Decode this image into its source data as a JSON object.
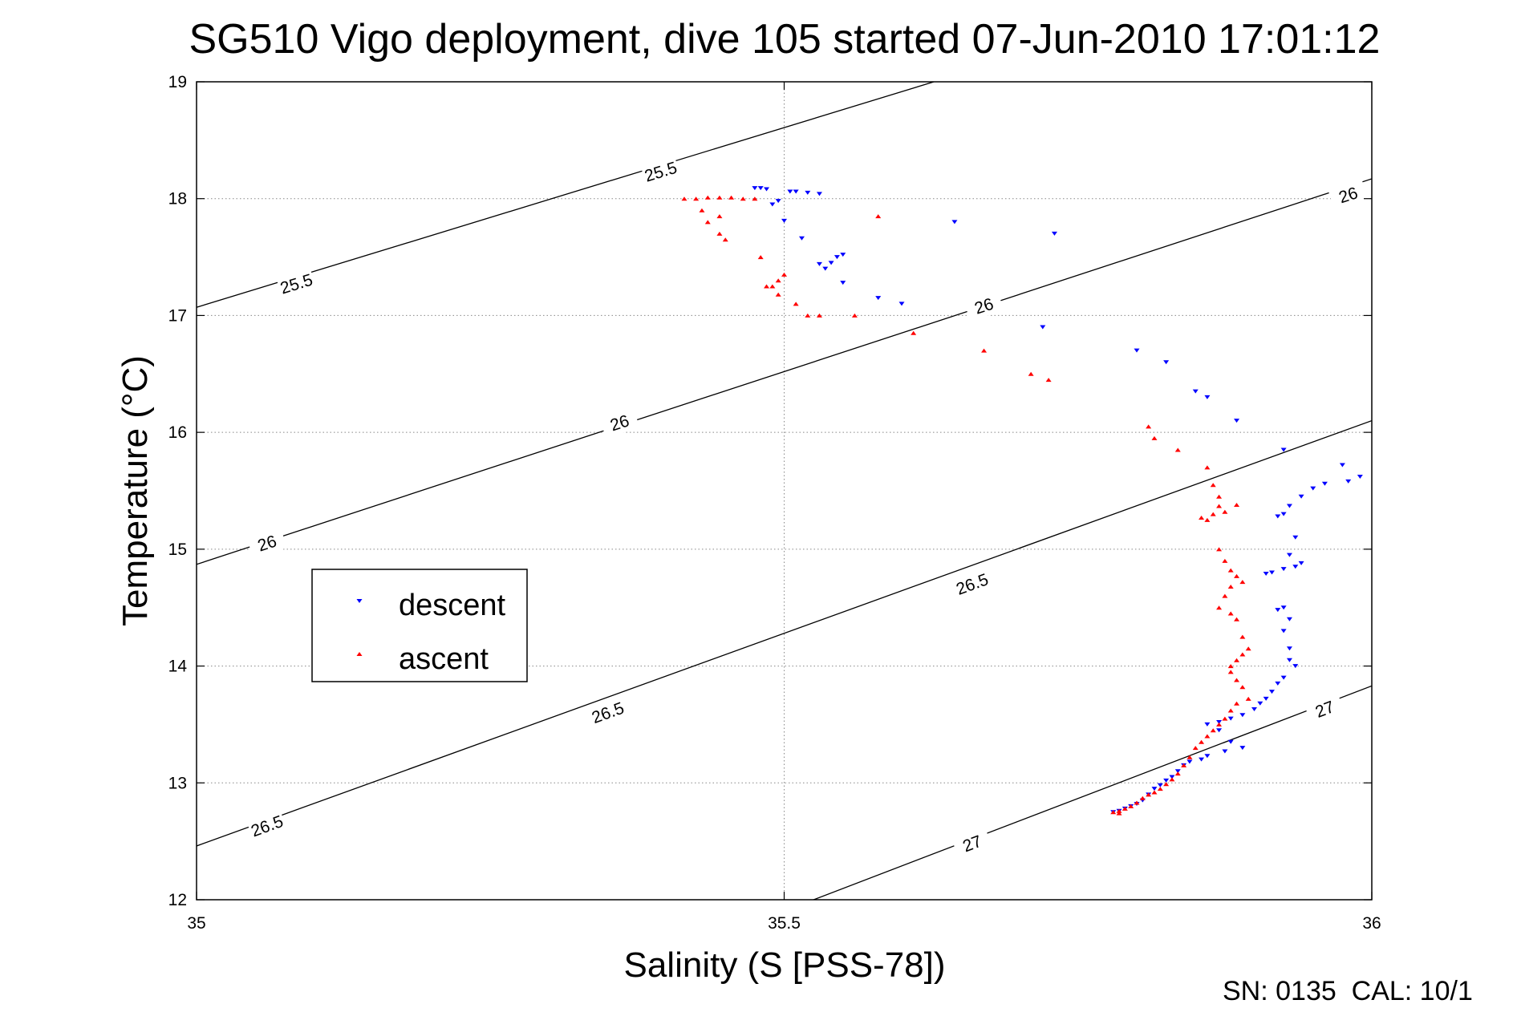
{
  "chart_data": {
    "type": "scatter",
    "title": "SG510 Vigo deployment, dive 105 started 07-Jun-2010 17:01:12",
    "xlabel": "Salinity (S [PSS-78])",
    "ylabel": "Temperature (°C)",
    "xlim": [
      35,
      36
    ],
    "ylim": [
      12,
      19
    ],
    "xticks": [
      35,
      35.5,
      36
    ],
    "yticks": [
      12,
      13,
      14,
      15,
      16,
      17,
      18,
      19
    ],
    "xtick_labels": [
      "35",
      "35.5",
      "36"
    ],
    "ytick_labels": [
      "12",
      "13",
      "14",
      "15",
      "16",
      "17",
      "18",
      "19"
    ],
    "grid": true,
    "grid_style": "dotted",
    "legend_position": "left-middle",
    "footer": "SN: 0135  CAL: 10/1",
    "contours": [
      {
        "label": "25.5",
        "points": [
          [
            35,
            17.07
          ],
          [
            35.6274,
            19
          ]
        ],
        "label_positions": [
          [
            35.085,
            17.27
          ],
          [
            35.395,
            18.23
          ]
        ]
      },
      {
        "label": "26",
        "points": [
          [
            35,
            14.87
          ],
          [
            36,
            18.17
          ]
        ],
        "label_positions": [
          [
            35.06,
            15.05
          ],
          [
            35.36,
            16.08
          ],
          [
            35.67,
            17.08
          ],
          [
            35.98,
            18.03
          ]
        ]
      },
      {
        "label": "26.5",
        "points": [
          [
            35,
            12.46
          ],
          [
            36,
            16.1
          ]
        ],
        "label_positions": [
          [
            35.06,
            12.63
          ],
          [
            35.35,
            13.6
          ],
          [
            35.66,
            14.7
          ]
        ]
      },
      {
        "label": "27",
        "points": [
          [
            35.525,
            12
          ],
          [
            36,
            13.83
          ]
        ],
        "label_positions": [
          [
            35.66,
            12.48
          ],
          [
            35.96,
            13.63
          ]
        ]
      }
    ],
    "series": [
      {
        "name": "descent",
        "color": "#0000ff",
        "marker": "triangle-down",
        "points": [
          [
            35.485,
            18.08
          ],
          [
            35.48,
            18.09
          ],
          [
            35.475,
            18.09
          ],
          [
            35.505,
            18.06
          ],
          [
            35.51,
            18.06
          ],
          [
            35.52,
            18.05
          ],
          [
            35.53,
            18.04
          ],
          [
            35.49,
            17.95
          ],
          [
            35.495,
            17.98
          ],
          [
            35.5,
            17.81
          ],
          [
            35.515,
            17.66
          ],
          [
            35.545,
            17.5
          ],
          [
            35.55,
            17.52
          ],
          [
            35.54,
            17.45
          ],
          [
            35.53,
            17.44
          ],
          [
            35.535,
            17.4
          ],
          [
            35.55,
            17.28
          ],
          [
            35.58,
            17.15
          ],
          [
            35.6,
            17.1
          ],
          [
            35.645,
            17.8
          ],
          [
            35.73,
            17.7
          ],
          [
            35.72,
            16.9
          ],
          [
            35.8,
            16.7
          ],
          [
            35.825,
            16.6
          ],
          [
            35.86,
            16.3
          ],
          [
            35.85,
            16.35
          ],
          [
            35.885,
            16.1
          ],
          [
            35.925,
            15.85
          ],
          [
            35.975,
            15.72
          ],
          [
            35.99,
            15.62
          ],
          [
            35.98,
            15.58
          ],
          [
            35.96,
            15.56
          ],
          [
            35.95,
            15.52
          ],
          [
            35.94,
            15.45
          ],
          [
            35.93,
            15.37
          ],
          [
            35.925,
            15.3
          ],
          [
            35.92,
            15.28
          ],
          [
            35.935,
            15.1
          ],
          [
            35.93,
            14.95
          ],
          [
            35.94,
            14.88
          ],
          [
            35.935,
            14.85
          ],
          [
            35.925,
            14.83
          ],
          [
            35.915,
            14.8
          ],
          [
            35.91,
            14.79
          ],
          [
            35.925,
            14.5
          ],
          [
            35.92,
            14.48
          ],
          [
            35.93,
            14.4
          ],
          [
            35.925,
            14.3
          ],
          [
            35.93,
            14.15
          ],
          [
            35.93,
            14.05
          ],
          [
            35.935,
            14
          ],
          [
            35.925,
            13.9
          ],
          [
            35.92,
            13.85
          ],
          [
            35.915,
            13.78
          ],
          [
            35.91,
            13.72
          ],
          [
            35.905,
            13.68
          ],
          [
            35.9,
            13.63
          ],
          [
            35.89,
            13.58
          ],
          [
            35.88,
            13.55
          ],
          [
            35.87,
            13.52
          ],
          [
            35.86,
            13.5
          ],
          [
            35.87,
            13.45
          ],
          [
            35.88,
            13.35
          ],
          [
            35.89,
            13.3
          ],
          [
            35.875,
            13.27
          ],
          [
            35.86,
            13.23
          ],
          [
            35.855,
            13.2
          ],
          [
            35.845,
            13.18
          ],
          [
            35.84,
            13.15
          ],
          [
            35.835,
            13.1
          ],
          [
            35.83,
            13.05
          ],
          [
            35.825,
            13.02
          ],
          [
            35.82,
            12.98
          ],
          [
            35.815,
            12.95
          ],
          [
            35.81,
            12.9
          ],
          [
            35.805,
            12.85
          ],
          [
            35.8,
            12.82
          ],
          [
            35.795,
            12.8
          ],
          [
            35.79,
            12.78
          ],
          [
            35.785,
            12.76
          ],
          [
            35.78,
            12.75
          ]
        ]
      },
      {
        "name": "ascent",
        "color": "#ff0000",
        "marker": "triangle-up",
        "points": [
          [
            35.415,
            18
          ],
          [
            35.425,
            18
          ],
          [
            35.435,
            18.01
          ],
          [
            35.445,
            18.01
          ],
          [
            35.455,
            18.01
          ],
          [
            35.465,
            18
          ],
          [
            35.475,
            18
          ],
          [
            35.43,
            17.9
          ],
          [
            35.435,
            17.8
          ],
          [
            35.445,
            17.85
          ],
          [
            35.445,
            17.7
          ],
          [
            35.45,
            17.65
          ],
          [
            35.48,
            17.5
          ],
          [
            35.5,
            17.35
          ],
          [
            35.495,
            17.3
          ],
          [
            35.49,
            17.25
          ],
          [
            35.485,
            17.25
          ],
          [
            35.495,
            17.18
          ],
          [
            35.51,
            17.1
          ],
          [
            35.52,
            17
          ],
          [
            35.53,
            17
          ],
          [
            35.56,
            17
          ],
          [
            35.58,
            17.85
          ],
          [
            35.61,
            16.85
          ],
          [
            35.67,
            16.7
          ],
          [
            35.71,
            16.5
          ],
          [
            35.725,
            16.45
          ],
          [
            35.81,
            16.05
          ],
          [
            35.815,
            15.95
          ],
          [
            35.835,
            15.85
          ],
          [
            35.86,
            15.7
          ],
          [
            35.865,
            15.55
          ],
          [
            35.87,
            15.45
          ],
          [
            35.87,
            15.37
          ],
          [
            35.865,
            15.3
          ],
          [
            35.855,
            15.27
          ],
          [
            35.86,
            15.25
          ],
          [
            35.875,
            15.32
          ],
          [
            35.885,
            15.38
          ],
          [
            35.87,
            15
          ],
          [
            35.875,
            14.9
          ],
          [
            35.88,
            14.82
          ],
          [
            35.885,
            14.77
          ],
          [
            35.89,
            14.72
          ],
          [
            35.88,
            14.68
          ],
          [
            35.875,
            14.6
          ],
          [
            35.87,
            14.5
          ],
          [
            35.88,
            14.45
          ],
          [
            35.885,
            14.4
          ],
          [
            35.89,
            14.25
          ],
          [
            35.895,
            14.15
          ],
          [
            35.89,
            14.1
          ],
          [
            35.885,
            14.05
          ],
          [
            35.88,
            14
          ],
          [
            35.88,
            13.95
          ],
          [
            35.885,
            13.88
          ],
          [
            35.89,
            13.82
          ],
          [
            35.895,
            13.72
          ],
          [
            35.885,
            13.68
          ],
          [
            35.88,
            13.62
          ],
          [
            35.875,
            13.55
          ],
          [
            35.87,
            13.5
          ],
          [
            35.865,
            13.45
          ],
          [
            35.86,
            13.4
          ],
          [
            35.855,
            13.35
          ],
          [
            35.85,
            13.3
          ],
          [
            35.845,
            13.22
          ],
          [
            35.84,
            13.15
          ],
          [
            35.835,
            13.08
          ],
          [
            35.83,
            13.03
          ],
          [
            35.825,
            12.99
          ],
          [
            35.82,
            12.95
          ],
          [
            35.815,
            12.92
          ],
          [
            35.81,
            12.9
          ],
          [
            35.805,
            12.87
          ],
          [
            35.8,
            12.83
          ],
          [
            35.795,
            12.8
          ],
          [
            35.79,
            12.78
          ],
          [
            35.785,
            12.76
          ],
          [
            35.78,
            12.75
          ],
          [
            35.785,
            12.74
          ]
        ]
      }
    ]
  }
}
